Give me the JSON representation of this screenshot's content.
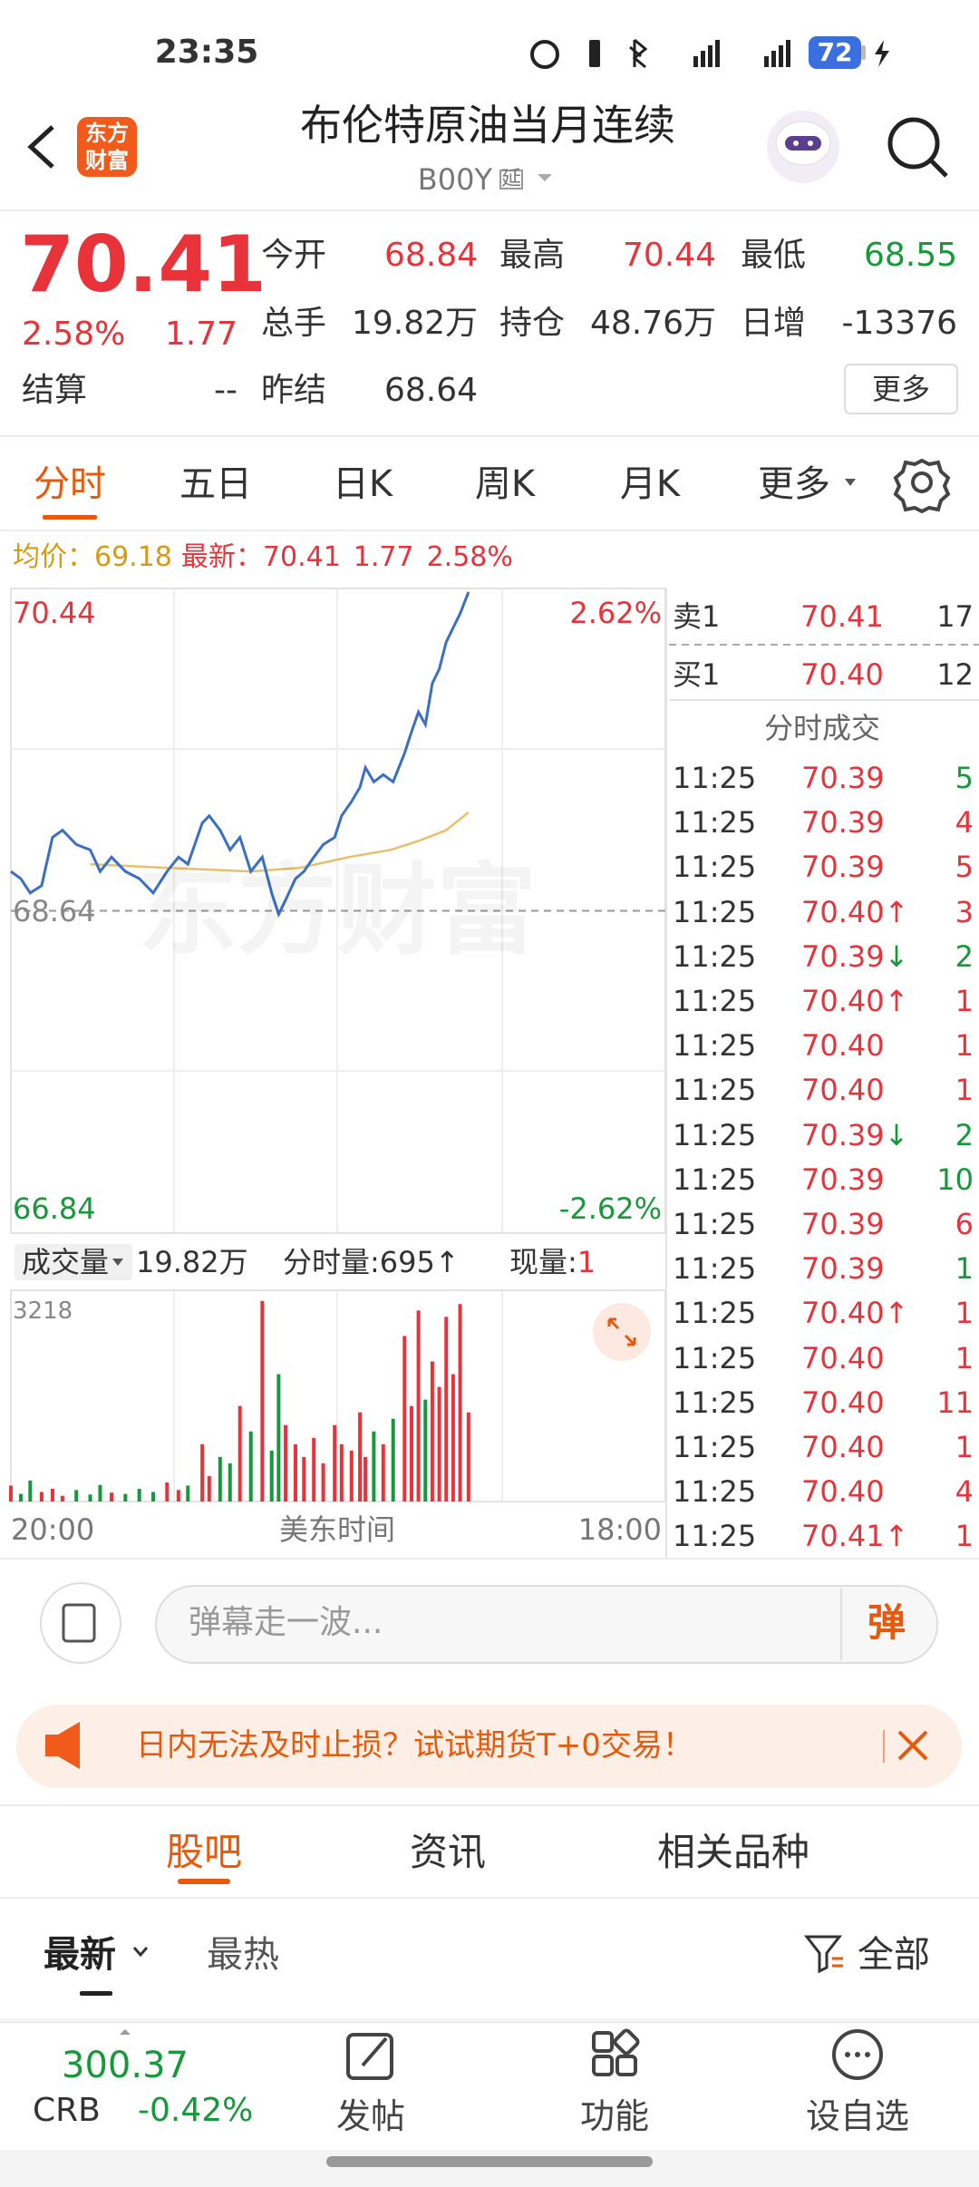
{
  "status_bar": {
    "time": "23:35",
    "battery": "72"
  },
  "header": {
    "logo_lines": [
      "东方",
      "财富"
    ],
    "title": "布伦特原油当月连续",
    "code": "B00Y",
    "delay_badge": "延"
  },
  "quote": {
    "price": "70.41",
    "change_pct": "2.58%",
    "change": "1.77",
    "fields": [
      {
        "label": "今开",
        "value": "68.84",
        "color": "red"
      },
      {
        "label": "最高",
        "value": "70.44",
        "color": "red"
      },
      {
        "label": "最低",
        "value": "68.55",
        "color": "green"
      },
      {
        "label": "总手",
        "value": "19.82万",
        "color": "dark"
      },
      {
        "label": "持仓",
        "value": "48.76万",
        "color": "dark"
      },
      {
        "label": "日增",
        "value": "-13376",
        "color": "dark"
      },
      {
        "label": "结算",
        "value": "--",
        "color": "dark"
      },
      {
        "label": "昨结",
        "value": "68.64",
        "color": "dark"
      }
    ],
    "more_button": "更多"
  },
  "tabs": [
    "分时",
    "五日",
    "日K",
    "周K",
    "月K",
    "更多"
  ],
  "info_bar": {
    "avg_label": "均价：",
    "avg": "69.18",
    "last_label": "最新：",
    "last": "70.41",
    "change": "1.77",
    "change_pct": "2.58%"
  },
  "intraday": {
    "ylim": [
      66.84,
      70.44
    ],
    "yticks": [
      66.84,
      68.64,
      70.44
    ],
    "prev_settle": 68.64,
    "pct_labels": [
      "2.62%",
      "-2.62%"
    ],
    "xlim": [
      0,
      1320
    ],
    "x": [
      0,
      20,
      39,
      62,
      84,
      104,
      132,
      160,
      180,
      203,
      231,
      259,
      287,
      315,
      338,
      357,
      386,
      400,
      422,
      442,
      462,
      484,
      507,
      526,
      540,
      554,
      574,
      591,
      611,
      630,
      653,
      667,
      687,
      704,
      715,
      732,
      751,
      771,
      794,
      808,
      822,
      836,
      850,
      864,
      878,
      892,
      906,
      923
    ],
    "price": [
      68.86,
      68.82,
      68.74,
      68.78,
      69.05,
      69.09,
      69.01,
      68.98,
      68.86,
      68.94,
      68.86,
      68.82,
      68.74,
      68.86,
      68.94,
      68.9,
      69.13,
      69.17,
      69.09,
      68.98,
      69.05,
      68.86,
      68.94,
      68.74,
      68.62,
      68.7,
      68.82,
      68.86,
      68.94,
      69.01,
      69.05,
      69.17,
      69.25,
      69.33,
      69.44,
      69.36,
      69.4,
      69.36,
      69.52,
      69.64,
      69.75,
      69.68,
      69.91,
      69.99,
      70.14,
      70.22,
      70.3,
      70.42
    ],
    "avg_x": [
      160,
      315,
      484,
      583,
      681,
      766,
      822,
      878,
      923
    ],
    "avg": [
      68.9,
      68.88,
      68.86,
      68.88,
      68.94,
      68.98,
      69.03,
      69.09,
      69.19
    ],
    "watermark": "东方财富",
    "time_start": "20:00",
    "time_zone": "美东时间",
    "time_end": "18:00"
  },
  "volume": {
    "label": "成交量",
    "total": "19.82万",
    "interval": "分时量:695↑",
    "current_label": "现量:",
    "current": "1",
    "ylim": [
      0,
      3218
    ],
    "yticks": [
      3218
    ],
    "values": [
      250,
      120,
      330,
      150,
      200,
      90,
      180,
      110,
      260,
      140,
      120,
      200,
      150,
      300,
      180,
      250,
      900,
      400,
      700,
      600,
      1500,
      1100,
      3150,
      800,
      2000,
      1200,
      900,
      700,
      1000,
      600,
      1200,
      900,
      800,
      1400,
      700,
      1100,
      900,
      1300,
      2600,
      1500,
      3000,
      1600,
      2200,
      1800,
      2900,
      2000,
      3100,
      1400
    ]
  },
  "order_book": [
    {
      "label": "卖1",
      "price": "70.41",
      "volume": "17"
    },
    {
      "label": "买1",
      "price": "70.40",
      "volume": "12"
    }
  ],
  "trades_title": "分时成交",
  "trades": [
    {
      "time": "11:25",
      "price": "70.39",
      "volume": "5",
      "color": "green"
    },
    {
      "time": "11:25",
      "price": "70.39",
      "volume": "4",
      "color": "red"
    },
    {
      "time": "11:25",
      "price": "70.39",
      "volume": "5",
      "color": "red"
    },
    {
      "time": "11:25",
      "price": "70.40",
      "arrow": "↑",
      "volume": "3",
      "color": "red"
    },
    {
      "time": "11:25",
      "price": "70.39",
      "arrow": "↓",
      "volume": "2",
      "color": "green"
    },
    {
      "time": "11:25",
      "price": "70.40",
      "arrow": "↑",
      "volume": "1",
      "color": "red"
    },
    {
      "time": "11:25",
      "price": "70.40",
      "volume": "1",
      "color": "red"
    },
    {
      "time": "11:25",
      "price": "70.40",
      "volume": "1",
      "color": "red"
    },
    {
      "time": "11:25",
      "price": "70.39",
      "arrow": "↓",
      "volume": "2",
      "color": "green"
    },
    {
      "time": "11:25",
      "price": "70.39",
      "volume": "10",
      "color": "green"
    },
    {
      "time": "11:25",
      "price": "70.39",
      "volume": "6",
      "color": "red"
    },
    {
      "time": "11:25",
      "price": "70.39",
      "volume": "1",
      "color": "green"
    },
    {
      "time": "11:25",
      "price": "70.40",
      "arrow": "↑",
      "volume": "1",
      "color": "red"
    },
    {
      "time": "11:25",
      "price": "70.40",
      "volume": "1",
      "color": "red"
    },
    {
      "time": "11:25",
      "price": "70.40",
      "volume": "11",
      "color": "red"
    },
    {
      "time": "11:25",
      "price": "70.40",
      "volume": "1",
      "color": "red"
    },
    {
      "time": "11:25",
      "price": "70.40",
      "volume": "4",
      "color": "red"
    },
    {
      "time": "11:25",
      "price": "70.41",
      "arrow": "↑",
      "volume": "1",
      "color": "red"
    }
  ],
  "comment_bar": {
    "placeholder": "弹幕走一波...",
    "button": "弹"
  },
  "banner": {
    "text": "日内无法及时止损？试试期货T+0交易！"
  },
  "section_tabs": [
    "股吧",
    "资讯",
    "相关品种"
  ],
  "feed_filters": {
    "latest": "最新",
    "hot": "最热",
    "all": "全部"
  },
  "bottom_bar": {
    "index_value": "300.37",
    "index_name": "CRB",
    "index_change": "-0.42%",
    "actions": [
      "发帖",
      "功能",
      "设自选"
    ]
  }
}
